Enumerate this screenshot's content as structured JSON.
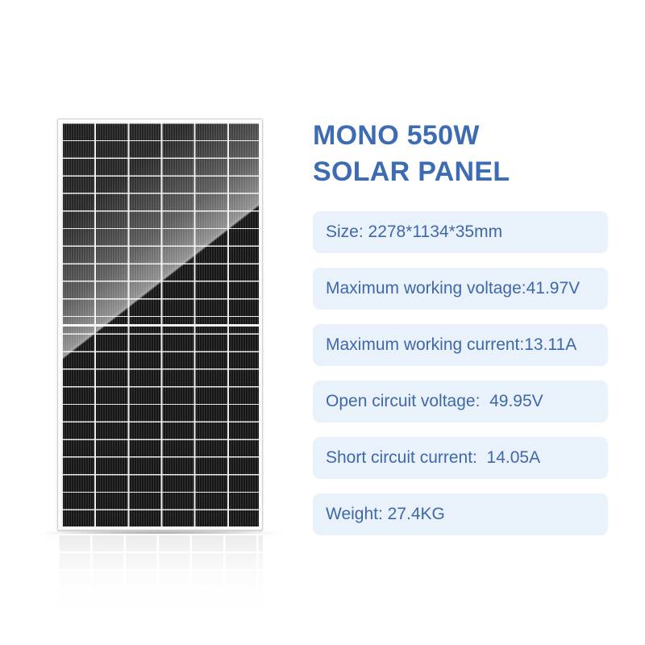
{
  "theme": {
    "accent": "#3e6cb3",
    "spec_text": "#3f68a9",
    "spec_bg": "#e9f2fb",
    "panel_dark": "#151515"
  },
  "product": {
    "title_line1": "MONO 550W",
    "title_line2": "SOLAR PANEL"
  },
  "specs": {
    "rows": [
      {
        "text": "Size: 2278*1134*35mm"
      },
      {
        "text": "Maximum working voltage:41.97V"
      },
      {
        "text": "Maximum working current:13.11A"
      },
      {
        "text": "Open circuit voltage:  49.95V"
      },
      {
        "text": "Short circuit current:  14.05A"
      },
      {
        "text": "Weight: 27.4KG"
      }
    ]
  },
  "panel_image": {
    "name": "mono-solar-panel-render",
    "columns": 6,
    "rows": 23,
    "orientation": "portrait"
  }
}
